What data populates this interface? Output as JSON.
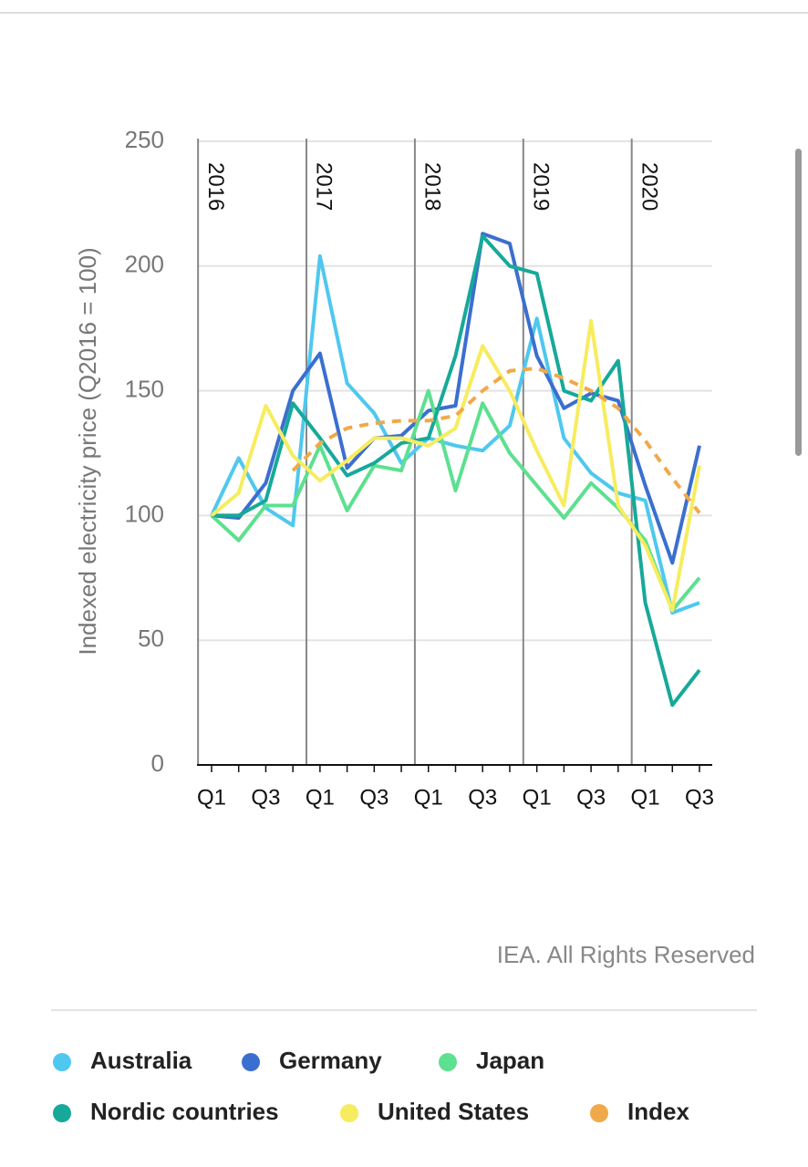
{
  "chart_data": {
    "type": "line",
    "y_label": "Indexed electricity price (Q2016 = 100)",
    "credit": "IEA. All Rights Reserved",
    "categories": [
      "Q1",
      null,
      "Q3",
      null,
      "Q1",
      null,
      "Q3",
      null,
      "Q1",
      null,
      "Q3",
      null,
      "Q1",
      null,
      "Q3",
      null,
      "Q1",
      null,
      "Q3"
    ],
    "years": [
      "2016",
      "2017",
      "2018",
      "2019",
      "2020"
    ],
    "ylim": [
      0,
      250
    ],
    "yticks": [
      0,
      50,
      100,
      150,
      200,
      250
    ],
    "grid": true,
    "series": [
      {
        "name": "Australia",
        "color": "#4fc8ef",
        "values": [
          100,
          123,
          103,
          96,
          204,
          153,
          141,
          121,
          131,
          128,
          126,
          136,
          179,
          131,
          117,
          109,
          106,
          61,
          65
        ]
      },
      {
        "name": "Germany",
        "color": "#3b6fcf",
        "values": [
          100,
          99,
          113,
          150,
          165,
          119,
          131,
          132,
          142,
          144,
          213,
          209,
          164,
          143,
          149,
          146,
          112,
          81,
          128
        ]
      },
      {
        "name": "Japan",
        "color": "#5de08f",
        "values": [
          100,
          90,
          104,
          104,
          128,
          102,
          120,
          118,
          150,
          110,
          145,
          125,
          112,
          99,
          113,
          103,
          90,
          62,
          75
        ]
      },
      {
        "name": "Nordic countries",
        "color": "#16a99a",
        "values": [
          100,
          100,
          106,
          145,
          131,
          116,
          121,
          129,
          131,
          164,
          212,
          200,
          197,
          150,
          146,
          162,
          65,
          24,
          38
        ]
      },
      {
        "name": "United States",
        "color": "#f7ec5f",
        "values": [
          100,
          109,
          144,
          124,
          114,
          122,
          131,
          131,
          128,
          135,
          168,
          150,
          126,
          104,
          178,
          104,
          88,
          62,
          120
        ]
      },
      {
        "name": "Index",
        "color": "#f0a94a",
        "dashed": true,
        "values": [
          null,
          null,
          null,
          118,
          129,
          135,
          137,
          138,
          138,
          140,
          150,
          158,
          159,
          155,
          150,
          143,
          130,
          115,
          101
        ]
      }
    ]
  }
}
